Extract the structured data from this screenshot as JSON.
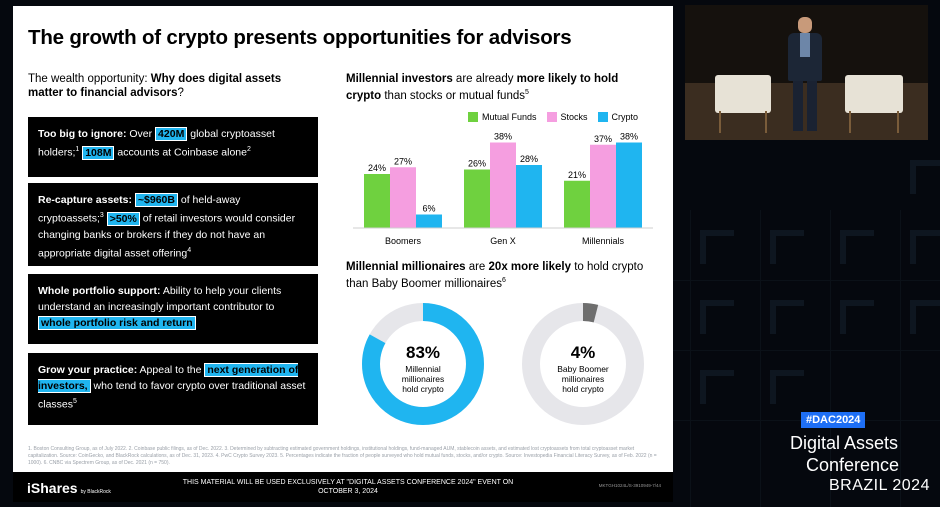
{
  "slide": {
    "title": "The growth of crypto presents opportunities for advisors",
    "left_heading_prefix": "The wealth opportunity: ",
    "left_heading_bold": "Why does digital assets matter to financial advisors",
    "left_heading_suffix": "?",
    "boxes": [
      {
        "kw": "Too big to ignore:",
        "t1": " Over ",
        "h1": "420M",
        "t2": " global cryptoasset holders;",
        "s1": "1",
        "t3": " ",
        "h2": "108M",
        "t4": " accounts at Coinbase alone",
        "s2": "2"
      },
      {
        "kw": "Re-capture assets:",
        "t1": " ",
        "h1": "~$960B",
        "t2": " of held-away cryptoassets;",
        "s1": "3",
        "t3": " ",
        "h2": ">50%",
        "t4": " of retail investors would consider changing banks or brokers if they do not have an appropriate digital asset offering",
        "s2": "4"
      },
      {
        "kw": "Whole portfolio support:",
        "t1": " Ability to help your clients understand an increasingly important contributor to ",
        "h1": "whole portfolio risk and return"
      },
      {
        "kw": "Grow your practice:",
        "t1": " Appeal to the ",
        "h1": "next generation of investors,",
        "t2": " who tend to favor crypto over traditional asset classes",
        "s1": "5"
      }
    ],
    "right_heading_1": {
      "b1": "Millennial investors",
      "t1": " are already ",
      "b2": "more likely to hold crypto",
      "t2": " than stocks or mutual funds",
      "s1": "5"
    },
    "right_heading_2": {
      "b1": "Millennial millionaires",
      "t1": " are ",
      "b2": "20x more likely",
      "t2": " to hold crypto than Baby Boomer millionaires",
      "s1": "6"
    },
    "footnotes": "1. Boston Consulting Group, as of July 2022. 2. Coinbase public filings, as of Dec. 2022. 3. Determined by subtracting estimated government holdings, institutional holdings, fund-managed AUM, stablecoin assets, and estimated lost cryptoassets from total cryptoasset market capitalization. Source: CoinGecko, and BlackRock calculations, as of Dec. 31, 2023. 4. PwC Crypto Survey 2023. 5. Percentages indicate the fraction of people surveyed who hold mutual funds, stocks, and/or crypto. Source: Investopedia Financial Literacy Survey, as of Feb. 2022 (n = 1000). 6. CNBC via Spectrem Group, as of Dec. 2021 (n = 750).",
    "footer": {
      "logo": "iShares",
      "logo_sub": "by BlackRock",
      "notice": "THIS MATERIAL WILL BE USED EXCLUSIVELY AT \"DIGITAL ASSETS CONFERENCE 2024\" EVENT ON OCTOBER 3, 2024",
      "code": "MKTGH1024L/S-3910949-7/44"
    }
  },
  "chart_data": [
    {
      "type": "bar",
      "categories": [
        "Boomers",
        "Gen X",
        "Millennials"
      ],
      "series": [
        {
          "name": "Mutual Funds",
          "values": [
            24,
            26,
            21
          ],
          "color": "#6fd13f"
        },
        {
          "name": "Stocks",
          "values": [
            27,
            38,
            37
          ],
          "color": "#f59ee0"
        },
        {
          "name": "Crypto",
          "values": [
            6,
            28,
            38
          ],
          "color": "#1fb5f0"
        }
      ],
      "value_suffix": "%",
      "ylim": [
        0,
        40
      ],
      "legend": "top-right"
    },
    {
      "type": "pie",
      "charts": [
        {
          "value": 83,
          "label_value": "83%",
          "label": [
            "Millennial",
            "millionaires",
            "hold crypto"
          ],
          "color": "#1fb5f0"
        },
        {
          "value": 4,
          "label_value": "4%",
          "label": [
            "Baby Boomer",
            "millionaires",
            "hold crypto"
          ],
          "color": "#6e6e6e"
        }
      ],
      "track_color": "#e6e6ea"
    }
  ],
  "event": {
    "hashtag": "#DAC2024",
    "line1": "Digital Assets",
    "line2": "Conference",
    "line3": "BRAZIL 2024"
  }
}
